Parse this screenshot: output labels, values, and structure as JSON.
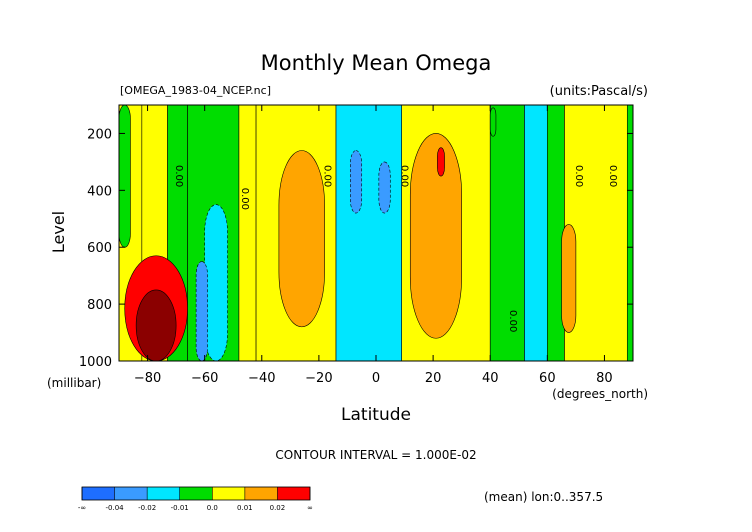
{
  "chart_data": {
    "type": "heatmap",
    "title": "Monthly Mean Omega",
    "file_label": "[OMEGA_1983-04_NCEP.nc]",
    "units_label": "(units:Pascal/s)",
    "xlabel": "Latitude",
    "x_units": "(degrees_north)",
    "ylabel": "Level",
    "y_units": "(millibar)",
    "xlim": [
      -90,
      90
    ],
    "ylim": [
      1000,
      100
    ],
    "x_ticks": [
      -80,
      -60,
      -40,
      -20,
      0,
      20,
      40,
      60,
      80
    ],
    "y_ticks": [
      200,
      400,
      600,
      800,
      1000
    ],
    "contour_label": "0.00",
    "contour_label_positions": [
      {
        "lat": -70,
        "level": 350
      },
      {
        "lat": -47,
        "level": 430
      },
      {
        "lat": -18,
        "level": 350
      },
      {
        "lat": 9,
        "level": 350
      },
      {
        "lat": 47,
        "level": 860
      },
      {
        "lat": 70,
        "level": 350
      },
      {
        "lat": 82,
        "level": 350
      }
    ],
    "contour_interval_text": "CONTOUR INTERVAL = 1.000E-02",
    "footer_text": "(mean) lon:0..357.5",
    "colorbar": {
      "labels": [
        "-∞",
        "-0.04",
        "-0.02",
        "-0.01",
        "0.0",
        "0.01",
        "0.02",
        "∞"
      ],
      "colors": [
        "#1e6eff",
        "#3a9bff",
        "#00e6ff",
        "#00dd00",
        "#ffff00",
        "#ffa500",
        "#ff0000"
      ]
    },
    "level_colors": {
      "-0.03": "#1e6eff",
      "-0.02": "#3a9bff",
      "-0.01": "#00e6ff",
      "0.00": "#00dd00",
      "0.01": "#ffff00",
      "0.02": "#ffa500",
      "0.03": "#ff0000",
      "0.04": "#8b0000"
    },
    "base_bands": [
      {
        "from": -90,
        "to": -82,
        "value": 0.01
      },
      {
        "from": -82,
        "to": -73,
        "value": 0.01
      },
      {
        "from": -73,
        "to": -66,
        "value": 0.0
      },
      {
        "from": -66,
        "to": -48,
        "value": 0.0
      },
      {
        "from": -48,
        "to": -42,
        "value": 0.01
      },
      {
        "from": -42,
        "to": -14,
        "value": 0.01
      },
      {
        "from": -14,
        "to": 9,
        "value": -0.01
      },
      {
        "from": 9,
        "to": 40,
        "value": 0.01
      },
      {
        "from": 40,
        "to": 52,
        "value": 0.0
      },
      {
        "from": 52,
        "to": 60,
        "value": -0.01
      },
      {
        "from": 60,
        "to": 66,
        "value": 0.0
      },
      {
        "from": 66,
        "to": 88,
        "value": 0.01
      },
      {
        "from": 88,
        "to": 90,
        "value": 0.0
      }
    ],
    "features": [
      {
        "lat_min": -90,
        "lat_max": -86,
        "lev_min": 100,
        "lev_max": 600,
        "value": 0.0
      },
      {
        "lat_min": -34,
        "lat_max": -18,
        "lev_min": 260,
        "lev_max": 880,
        "value": 0.02
      },
      {
        "lat_min": -60,
        "lat_max": -52,
        "lev_min": 450,
        "lev_max": 1000,
        "value": -0.01
      },
      {
        "lat_min": -9,
        "lat_max": -5,
        "lev_min": 260,
        "lev_max": 480,
        "value": -0.02
      },
      {
        "lat_min": 1,
        "lat_max": 5,
        "lev_min": 300,
        "lev_max": 480,
        "value": -0.02
      },
      {
        "lat_min": 12,
        "lat_max": 30,
        "lev_min": 200,
        "lev_max": 920,
        "value": 0.02
      },
      {
        "lat_min": 21.5,
        "lat_max": 24,
        "lev_min": 250,
        "lev_max": 350,
        "value": 0.03
      },
      {
        "lat_min": 40,
        "lat_max": 42,
        "lev_min": 110,
        "lev_max": 210,
        "value": 0.0
      },
      {
        "lat_min": 65,
        "lat_max": 70,
        "lev_min": 520,
        "lev_max": 900,
        "value": 0.02
      },
      {
        "lat_min": -88,
        "lat_max": -66,
        "lev_min": 630,
        "lev_max": 1000,
        "value": 0.03
      },
      {
        "lat_min": -84,
        "lat_max": -70,
        "lev_min": 750,
        "lev_max": 1000,
        "value": 0.04
      },
      {
        "lat_min": -63,
        "lat_max": -59,
        "lev_min": 650,
        "lev_max": 1000,
        "value": -0.02
      }
    ]
  }
}
